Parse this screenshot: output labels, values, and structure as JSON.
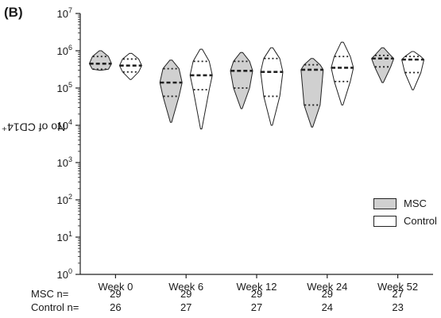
{
  "panel_label": "(B)",
  "colors": {
    "msc": "#d0d0d0",
    "control": "#ffffff",
    "stroke": "#222222"
  },
  "chart_data": {
    "type": "violin",
    "title": "",
    "ylabel": "No of CD14⁺ cells",
    "yscale": "log",
    "ylim": [
      1,
      10000000
    ],
    "yticks": [
      {
        "v": 1,
        "b": "10",
        "e": "0"
      },
      {
        "v": 10,
        "b": "10",
        "e": "1"
      },
      {
        "v": 100,
        "b": "10",
        "e": "2"
      },
      {
        "v": 1000,
        "b": "10",
        "e": "3"
      },
      {
        "v": 10000,
        "b": "10",
        "e": "4"
      },
      {
        "v": 100000,
        "b": "10",
        "e": "5"
      },
      {
        "v": 1000000,
        "b": "10",
        "e": "6"
      },
      {
        "v": 10000000,
        "b": "10",
        "e": "7"
      }
    ],
    "categories": [
      "Week 0",
      "Week 6",
      "Week 12",
      "Week 24",
      "Week 52"
    ],
    "legend": {
      "position": "bottom-right",
      "entries": [
        "MSC",
        "Control"
      ]
    },
    "series": [
      {
        "name": "MSC",
        "groups": [
          {
            "min": 300000,
            "q1": 320000,
            "median": 450000,
            "q3": 700000,
            "max": 1000000
          },
          {
            "min": 12000,
            "q1": 60000,
            "median": 140000,
            "q3": 330000,
            "max": 560000
          },
          {
            "min": 28000,
            "q1": 100000,
            "median": 290000,
            "q3": 520000,
            "max": 900000
          },
          {
            "min": 9000,
            "q1": 35000,
            "median": 310000,
            "q3": 420000,
            "max": 620000
          },
          {
            "min": 140000,
            "q1": 370000,
            "median": 620000,
            "q3": 750000,
            "max": 1200000
          }
        ]
      },
      {
        "name": "Control",
        "groups": [
          {
            "min": 170000,
            "q1": 270000,
            "median": 400000,
            "q3": 600000,
            "max": 850000
          },
          {
            "min": 8000,
            "q1": 90000,
            "median": 220000,
            "q3": 520000,
            "max": 1100000
          },
          {
            "min": 10000,
            "q1": 60000,
            "median": 270000,
            "q3": 620000,
            "max": 1200000
          },
          {
            "min": 35000,
            "q1": 150000,
            "median": 350000,
            "q3": 700000,
            "max": 1700000
          },
          {
            "min": 90000,
            "q1": 260000,
            "median": 580000,
            "q3": 700000,
            "max": 950000
          }
        ]
      }
    ]
  },
  "n_table": {
    "rows": [
      {
        "label": "MSC n=",
        "values": [
          "29",
          "29",
          "29",
          "29",
          "27"
        ]
      },
      {
        "label": "Control n=",
        "values": [
          "26",
          "27",
          "27",
          "24",
          "23"
        ]
      }
    ]
  }
}
